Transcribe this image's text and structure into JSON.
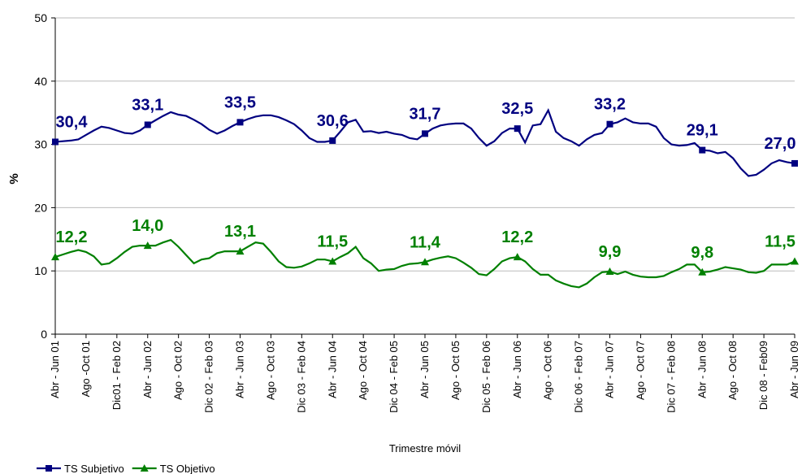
{
  "chart_data": {
    "type": "line",
    "ylabel": "%",
    "xlabel": "Trimestre móvil",
    "categories": [
      "Abr - Jun 01",
      null,
      null,
      null,
      "Ago -Oct 01",
      null,
      null,
      null,
      "Dic01 - Feb 02",
      null,
      null,
      null,
      "Abr - Jun 02",
      null,
      null,
      null,
      "Ago - Oct 02",
      null,
      null,
      null,
      "Dic 02 - Feb 03",
      null,
      null,
      null,
      "Abr - Jun 03",
      null,
      null,
      null,
      "Ago - Oct 03",
      null,
      null,
      null,
      "Dic 03 - Feb 04",
      null,
      null,
      null,
      "Abr - Jun 04",
      null,
      null,
      null,
      "Ago - Oct 04",
      null,
      null,
      null,
      "Dic 04 - Feb 05",
      null,
      null,
      null,
      "Abr - Jun 05",
      null,
      null,
      null,
      "Ago - Oct 05",
      null,
      null,
      null,
      "Dic 05 - Feb 06",
      null,
      null,
      null,
      "Abr - Jun 06",
      null,
      null,
      null,
      "Ago - Oct 06",
      null,
      null,
      null,
      "Dic  06 - Feb 07",
      null,
      null,
      null,
      "Abr - Jun 07",
      null,
      null,
      null,
      "Ago - Oct 07",
      null,
      null,
      null,
      "Dic 07 - Feb 08",
      null,
      null,
      null,
      "Abr - Jun 08",
      null,
      null,
      null,
      "Ago - Oct 08",
      null,
      null,
      null,
      "Dic 08 - Feb09",
      null,
      null,
      null,
      "Abr - Jun 09"
    ],
    "series": [
      {
        "name": "TS Subjetivo",
        "color": "#000080",
        "marker": "square",
        "values": [
          30.4,
          30.5,
          30.6,
          30.8,
          31.5,
          32.2,
          32.8,
          32.6,
          32.2,
          31.8,
          31.7,
          32.2,
          33.1,
          33.8,
          34.5,
          35.1,
          34.7,
          34.5,
          33.9,
          33.2,
          32.3,
          31.7,
          32.2,
          32.9,
          33.5,
          34.0,
          34.4,
          34.6,
          34.6,
          34.3,
          33.8,
          33.2,
          32.2,
          31.0,
          30.4,
          30.4,
          30.6,
          32.0,
          33.5,
          33.9,
          32.0,
          32.1,
          31.8,
          32.0,
          31.7,
          31.5,
          31.0,
          30.8,
          31.7,
          32.5,
          33.0,
          33.2,
          33.3,
          33.3,
          32.5,
          31.0,
          29.8,
          30.5,
          31.8,
          32.5,
          32.5,
          30.3,
          33.0,
          33.2,
          35.4,
          32.0,
          31.0,
          30.5,
          29.8,
          30.8,
          31.5,
          31.8,
          33.2,
          33.5,
          34.1,
          33.5,
          33.3,
          33.3,
          32.8,
          31.0,
          30.0,
          29.8,
          29.9,
          30.2,
          29.1,
          29.0,
          28.6,
          28.8,
          27.8,
          26.2,
          25.0,
          25.2,
          26.0,
          27.0,
          27.5,
          27.2,
          27.0
        ],
        "value_labels": [
          "30,4",
          null,
          null,
          null,
          null,
          null,
          null,
          null,
          null,
          null,
          null,
          null,
          "33,1",
          null,
          null,
          null,
          null,
          null,
          null,
          null,
          null,
          null,
          null,
          null,
          "33,5",
          null,
          null,
          null,
          null,
          null,
          null,
          null,
          null,
          null,
          null,
          null,
          "30,6",
          null,
          null,
          null,
          null,
          null,
          null,
          null,
          null,
          null,
          null,
          null,
          "31,7",
          null,
          null,
          null,
          null,
          null,
          null,
          null,
          null,
          null,
          null,
          null,
          "32,5",
          null,
          null,
          null,
          null,
          null,
          null,
          null,
          null,
          null,
          null,
          null,
          "33,2",
          null,
          null,
          null,
          null,
          null,
          null,
          null,
          null,
          null,
          null,
          null,
          "29,1",
          null,
          null,
          null,
          null,
          null,
          null,
          null,
          null,
          null,
          null,
          null,
          "27,0"
        ]
      },
      {
        "name": "TS Objetivo",
        "color": "#008000",
        "marker": "triangle",
        "values": [
          12.2,
          12.6,
          13.0,
          13.3,
          13.0,
          12.3,
          11.0,
          11.2,
          12.0,
          13.0,
          13.8,
          14.0,
          14.0,
          14.0,
          14.5,
          14.9,
          13.8,
          12.5,
          11.2,
          11.8,
          12.0,
          12.8,
          13.1,
          13.1,
          13.1,
          13.8,
          14.5,
          14.3,
          13.0,
          11.5,
          10.6,
          10.5,
          10.7,
          11.2,
          11.8,
          11.8,
          11.5,
          12.2,
          12.8,
          13.8,
          12.0,
          11.2,
          10.0,
          10.2,
          10.3,
          10.8,
          11.1,
          11.2,
          11.4,
          11.8,
          12.1,
          12.3,
          12.0,
          11.3,
          10.5,
          9.5,
          9.3,
          10.3,
          11.5,
          12.0,
          12.2,
          11.5,
          10.3,
          9.4,
          9.4,
          8.5,
          8.0,
          7.6,
          7.4,
          8.0,
          9.0,
          9.8,
          9.9,
          9.5,
          9.9,
          9.4,
          9.1,
          9.0,
          9.0,
          9.2,
          9.8,
          10.3,
          11.0,
          11.0,
          9.8,
          9.9,
          10.2,
          10.6,
          10.4,
          10.2,
          9.8,
          9.7,
          10.0,
          11.0,
          11.0,
          11.0,
          11.5
        ],
        "value_labels": [
          "12,2",
          null,
          null,
          null,
          null,
          null,
          null,
          null,
          null,
          null,
          null,
          null,
          "14,0",
          null,
          null,
          null,
          null,
          null,
          null,
          null,
          null,
          null,
          null,
          null,
          "13,1",
          null,
          null,
          null,
          null,
          null,
          null,
          null,
          null,
          null,
          null,
          null,
          "11,5",
          null,
          null,
          null,
          null,
          null,
          null,
          null,
          null,
          null,
          null,
          null,
          "11,4",
          null,
          null,
          null,
          null,
          null,
          null,
          null,
          null,
          null,
          null,
          null,
          "12,2",
          null,
          null,
          null,
          null,
          null,
          null,
          null,
          null,
          null,
          null,
          null,
          "9,9",
          null,
          null,
          null,
          null,
          null,
          null,
          null,
          null,
          null,
          null,
          null,
          "9,8",
          null,
          null,
          null,
          null,
          null,
          null,
          null,
          null,
          null,
          null,
          null,
          "11,5"
        ]
      }
    ],
    "ylim": [
      0,
      50
    ],
    "yticks": [
      0,
      10,
      20,
      30,
      40,
      50
    ],
    "grid": true,
    "legend": "bottom-left"
  }
}
